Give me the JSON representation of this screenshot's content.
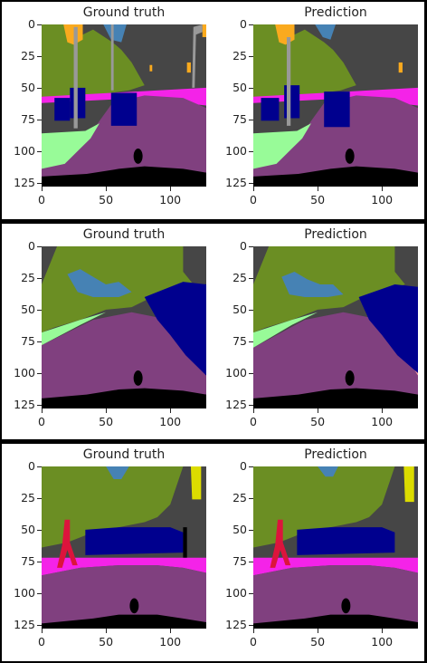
{
  "figure": {
    "rows": [
      {
        "plots": [
          {
            "title": "Ground truth",
            "scene": "scene1_gt"
          },
          {
            "title": "Prediction",
            "scene": "scene1_pred"
          }
        ]
      },
      {
        "plots": [
          {
            "title": "Ground truth",
            "scene": "scene2_gt"
          },
          {
            "title": "Prediction",
            "scene": "scene2_pred"
          }
        ]
      },
      {
        "plots": [
          {
            "title": "Ground truth",
            "scene": "scene3_gt"
          },
          {
            "title": "Prediction",
            "scene": "scene3_pred"
          }
        ]
      }
    ],
    "x_ticks": [
      "0",
      "50",
      "100"
    ],
    "y_ticks": [
      "0",
      "25",
      "50",
      "75",
      "100",
      "125"
    ]
  },
  "palette": {
    "sky": "#4682b4",
    "building": "#464646",
    "vegetation": "#6b8e23",
    "road": "#80407f",
    "sidewalk": "#f423e8",
    "car": "#00008e",
    "terrain": "#98fb98",
    "pole": "#999999",
    "traffic_sign": "#dcdc00",
    "traffic_light": "#faaa1e",
    "person": "#dc143c",
    "ego_vehicle": "#000000",
    "wall": "#fa9f9f"
  }
}
